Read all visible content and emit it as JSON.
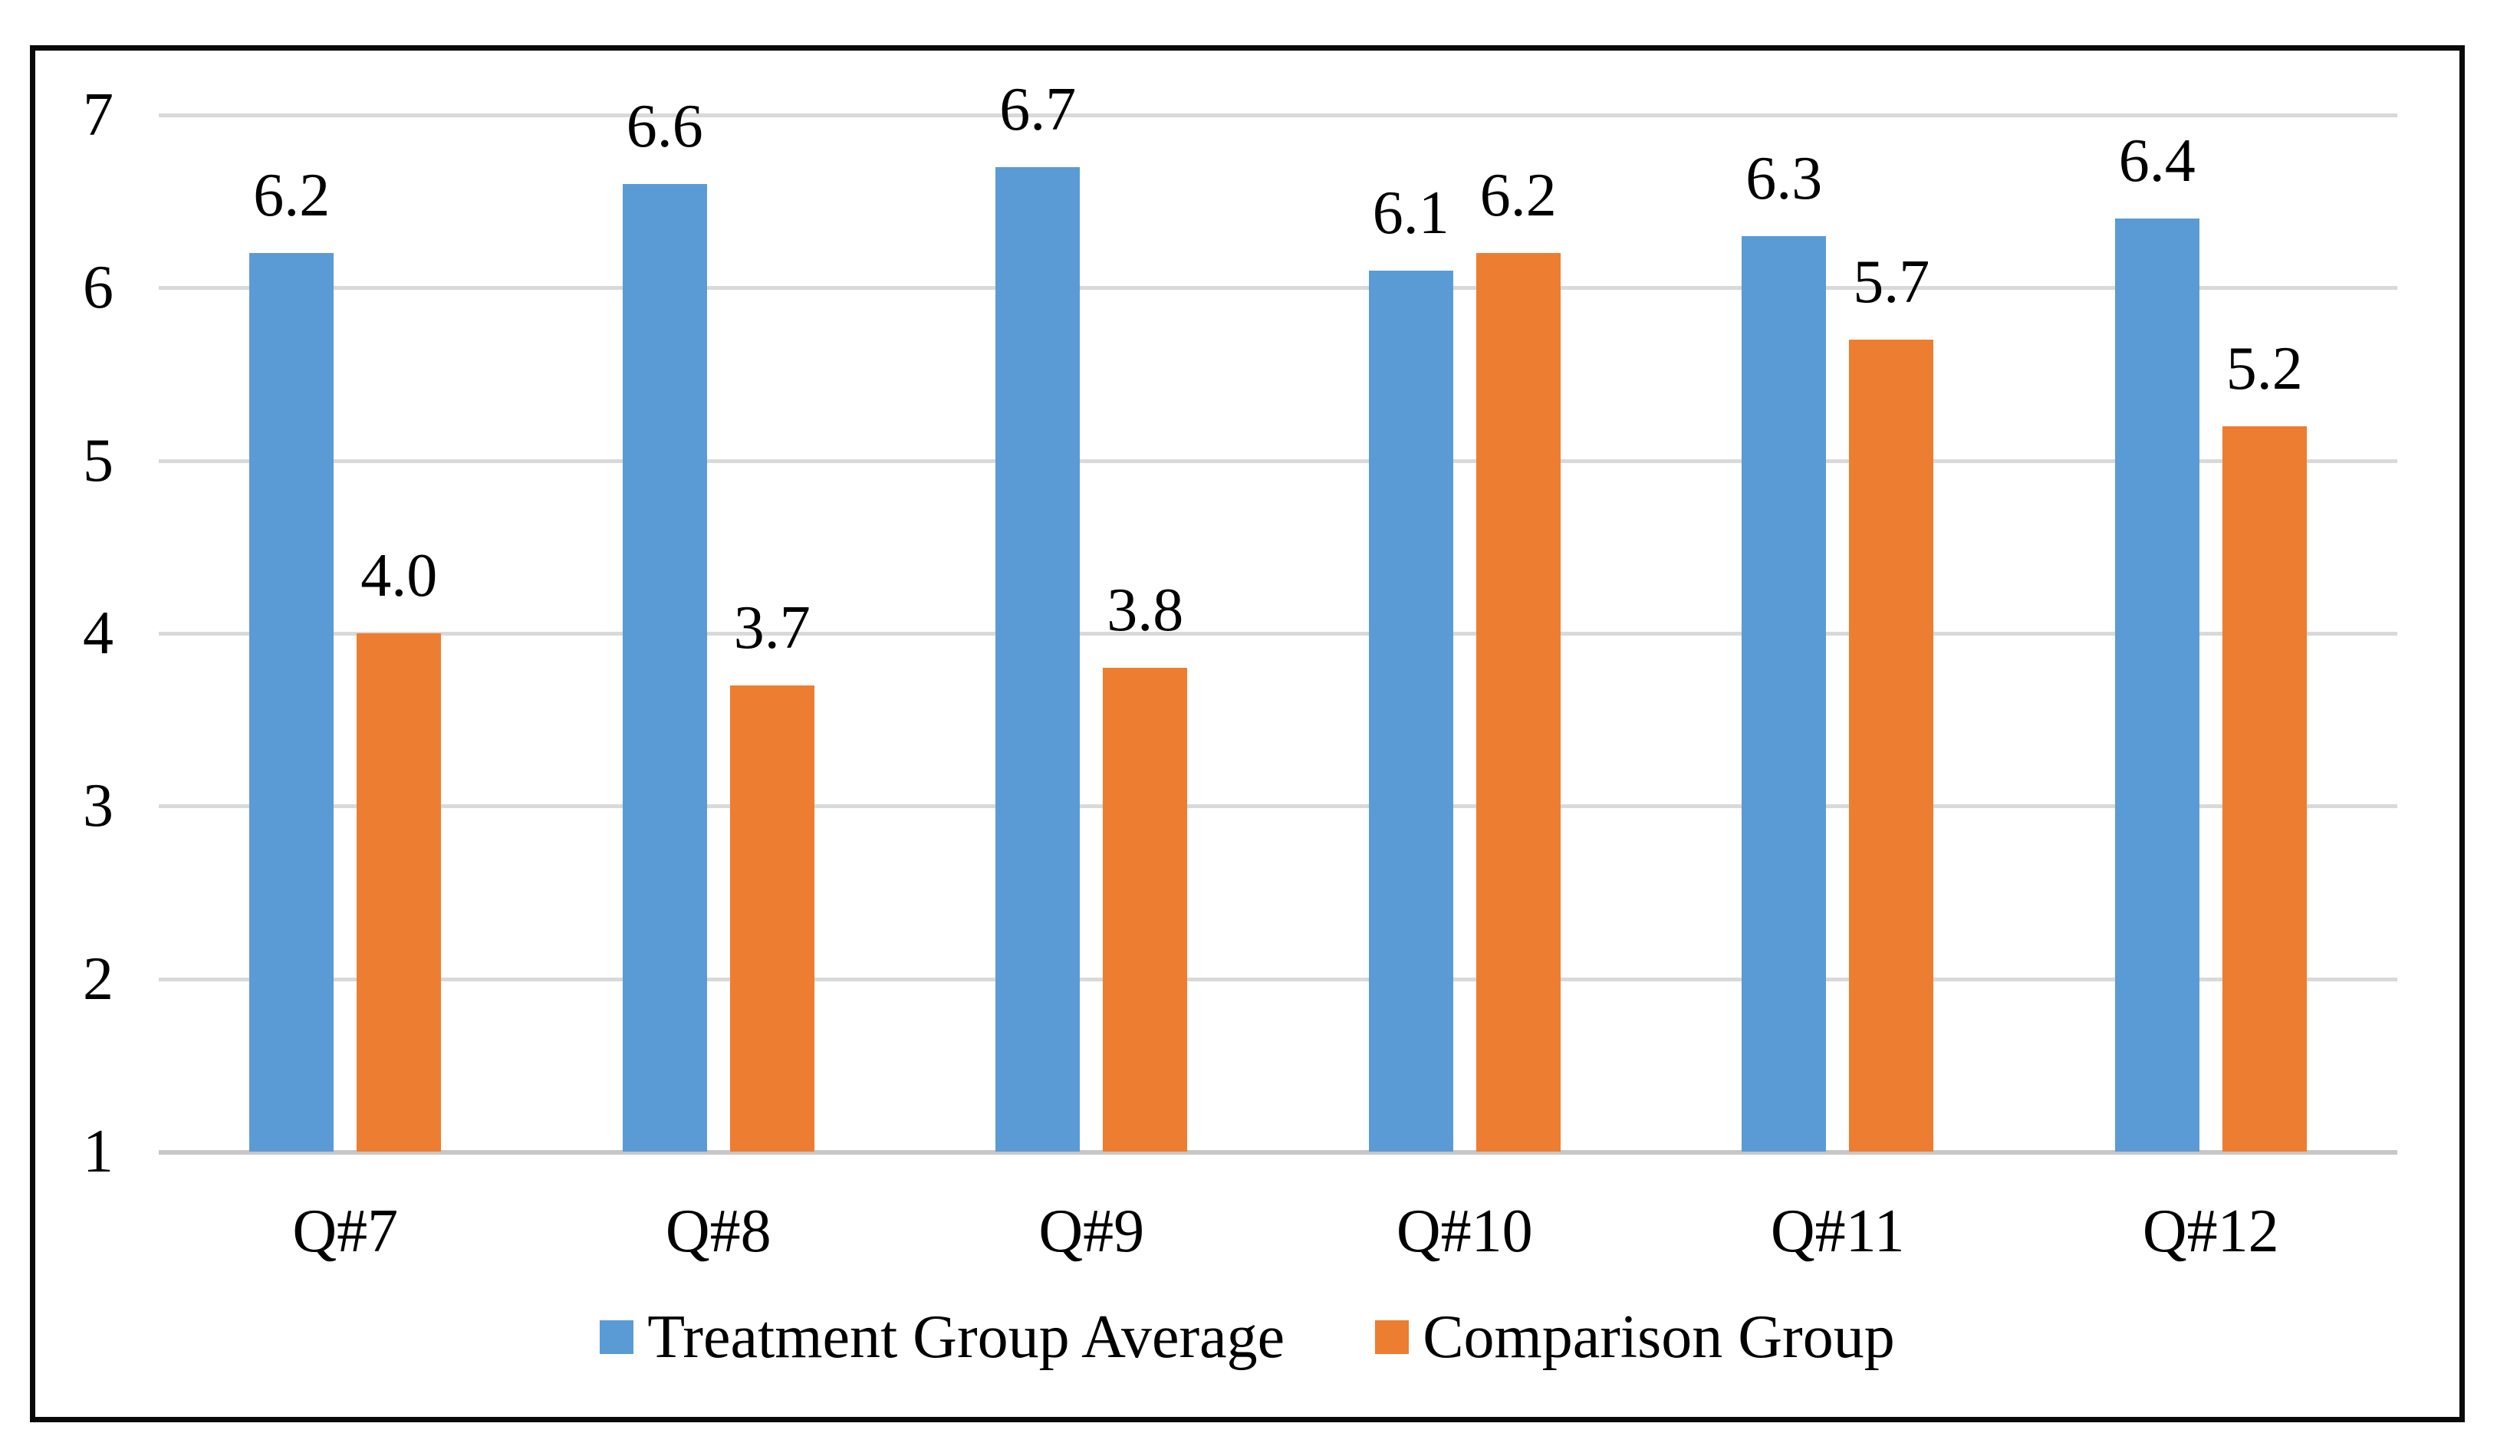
{
  "chart_data": {
    "type": "bar",
    "title": "",
    "xlabel": "",
    "ylabel": "",
    "categories": [
      "Q#7",
      "Q#8",
      "Q#9",
      "Q#10",
      "Q#11",
      "Q#12"
    ],
    "series": [
      {
        "name": "Treatment Group Average",
        "color": "#5B9BD5",
        "values": [
          6.2,
          6.6,
          6.7,
          6.1,
          6.3,
          6.4
        ],
        "labels": [
          "6.2",
          "6.6",
          "6.7",
          "6.1",
          "6.3",
          "6.4"
        ]
      },
      {
        "name": "Comparison Group",
        "color": "#ED7D31",
        "values": [
          4.0,
          3.7,
          3.8,
          6.2,
          5.7,
          5.2
        ],
        "labels": [
          "4.0",
          "3.7",
          "3.8",
          "6.2",
          "5.7",
          "5.2"
        ]
      }
    ],
    "y_axis": {
      "min": 1,
      "max": 7,
      "ticks": [
        "7",
        "6",
        "5",
        "4",
        "3",
        "2",
        "1"
      ],
      "tick_values": [
        7,
        6,
        5,
        4,
        3,
        2,
        1
      ]
    },
    "grid": true,
    "legend_position": "bottom",
    "colors": {
      "gridline": "#D9D9D9",
      "axis_line": "#C8C6C6",
      "frame_border": "#0A0A0A",
      "label_text": "#000000",
      "background": "#FFFFFF"
    }
  }
}
